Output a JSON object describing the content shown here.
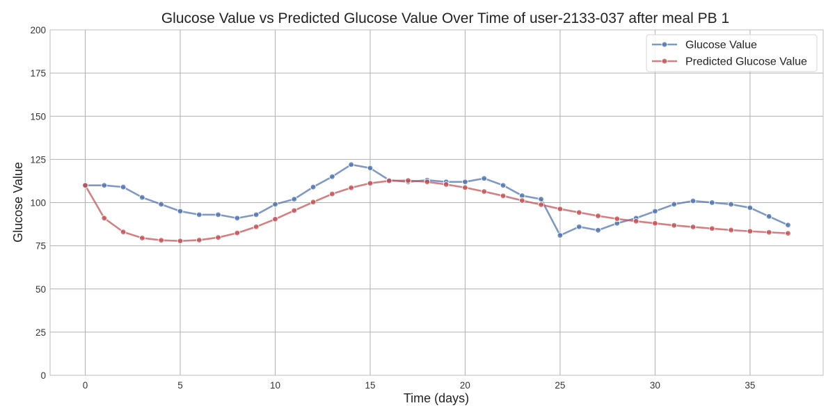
{
  "chart_data": {
    "type": "line",
    "title": "Glucose Value vs Predicted Glucose Value Over Time of user-2133-037 after meal PB 1",
    "xlabel": "Time (days)",
    "ylabel": "Glucose Value",
    "xlim": [
      -1.85,
      38.85
    ],
    "ylim": [
      0,
      200
    ],
    "xticks": [
      0,
      5,
      10,
      15,
      20,
      25,
      30,
      35
    ],
    "yticks": [
      0,
      25,
      50,
      75,
      100,
      125,
      150,
      175,
      200
    ],
    "grid": true,
    "legend_position": "top-right",
    "x": [
      0,
      1,
      2,
      3,
      4,
      5,
      6,
      7,
      8,
      9,
      10,
      11,
      12,
      13,
      14,
      15,
      16,
      17,
      18,
      19,
      20,
      21,
      22,
      23,
      24,
      25,
      26,
      27,
      28,
      29,
      30,
      31,
      32,
      33,
      34,
      35,
      36,
      37
    ],
    "series": [
      {
        "name": "Glucose Value",
        "color": "#4c72b0",
        "values": [
          110,
          110,
          109,
          103,
          99,
          95,
          93,
          93,
          91,
          93,
          99,
          102,
          109,
          115,
          122,
          120,
          113,
          112,
          113,
          112,
          112,
          114,
          110,
          104,
          102,
          81,
          86,
          84,
          88,
          91,
          95,
          99,
          101,
          100,
          99,
          97,
          92,
          87
        ]
      },
      {
        "name": "Predicted Glucose Value",
        "color": "#c44e52",
        "values": [
          110,
          91,
          83,
          79.5,
          78.2,
          77.8,
          78.3,
          79.8,
          82.4,
          86,
          90.4,
          95.4,
          100.3,
          105,
          108.6,
          111.2,
          112.6,
          112.8,
          112,
          110.5,
          108.7,
          106.4,
          103.9,
          101.2,
          98.8,
          96.3,
          94.3,
          92.3,
          90.6,
          89.2,
          88,
          86.8,
          85.9,
          85,
          84.1,
          83.4,
          82.8,
          82.2
        ]
      }
    ]
  }
}
